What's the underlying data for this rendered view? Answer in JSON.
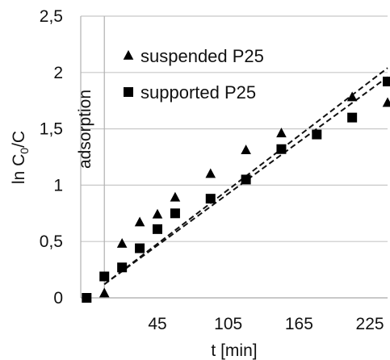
{
  "chart_data": {
    "type": "scatter",
    "xlabel": "t [min]",
    "ylabel_main": "ln C",
    "ylabel_sub": "0",
    "ylabel_tail": "/C",
    "xlim": [
      -20,
      240
    ],
    "ylim": [
      0,
      2.5
    ],
    "x_ticks": [
      45,
      105,
      165,
      225
    ],
    "x_tick_labels": [
      "45",
      "105",
      "165",
      "225"
    ],
    "y_ticks": [
      0,
      0.5,
      1,
      1.5,
      2,
      2.5
    ],
    "y_tick_labels": [
      "0",
      "0,5",
      "1",
      "1,5",
      "2",
      "2,5"
    ],
    "grid": "horizontal",
    "legend_position": "top-left",
    "annotation": "adsorption",
    "adsorption_boundary_x": 0,
    "series": [
      {
        "name": "suspended P25",
        "marker": "triangle",
        "x": [
          0,
          15,
          30,
          45,
          60,
          90,
          120,
          150,
          210,
          240
        ],
        "y": [
          0.04,
          0.48,
          0.67,
          0.74,
          0.89,
          1.1,
          1.31,
          1.46,
          1.78,
          1.73
        ]
      },
      {
        "name": "supported P25",
        "marker": "square",
        "x": [
          -15,
          0,
          15,
          30,
          45,
          60,
          90,
          120,
          150,
          180,
          210,
          240
        ],
        "y": [
          0,
          0.19,
          0.27,
          0.44,
          0.61,
          0.75,
          0.88,
          1.05,
          1.32,
          1.45,
          1.6,
          1.92
        ]
      }
    ],
    "trendlines": [
      {
        "series": "suspended P25",
        "style": "dashed",
        "x": [
          0,
          240
        ],
        "y": [
          0.12,
          2.04
        ]
      },
      {
        "series": "supported P25",
        "style": "dashed",
        "x": [
          0,
          240
        ],
        "y": [
          0.12,
          1.96
        ]
      }
    ]
  }
}
